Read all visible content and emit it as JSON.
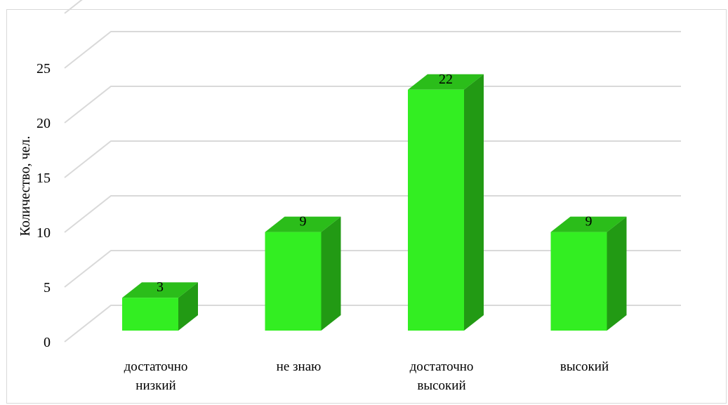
{
  "header": {
    "caption_fragment": ""
  },
  "colors": {
    "front": "#33ee22",
    "top": "#2bbd1a",
    "side": "#229a14",
    "grid": "#d9d9d9",
    "text": "#000000"
  },
  "chart_data": {
    "type": "bar",
    "categories": [
      [
        "достаточно",
        "низкий"
      ],
      [
        "не знаю"
      ],
      [
        "достаточно",
        "высокий"
      ],
      [
        "высокий"
      ]
    ],
    "values": [
      3,
      9,
      22,
      9
    ],
    "ylabel": "Количество, чел.",
    "ylim": [
      0,
      25
    ],
    "yticks": [
      0,
      5,
      10,
      15,
      20,
      25
    ],
    "grid": true,
    "style": "3d-column"
  }
}
